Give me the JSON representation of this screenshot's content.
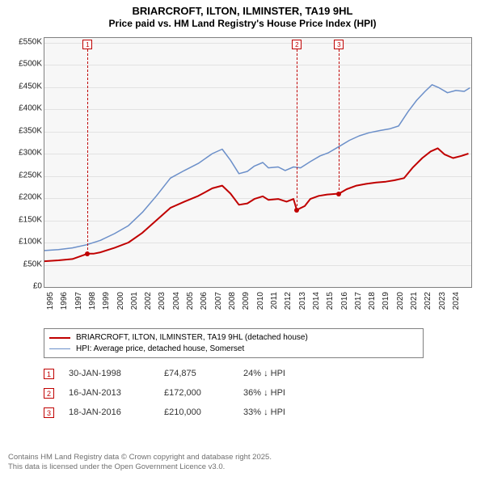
{
  "title": {
    "line1": "BRIARCROFT, ILTON, ILMINSTER, TA19 9HL",
    "line2": "Price paid vs. HM Land Registry's House Price Index (HPI)"
  },
  "chart": {
    "type": "line",
    "background_color": "#f7f7f7",
    "grid_color": "#e2e2e2",
    "border_color": "#808080",
    "x": {
      "min": 1995,
      "max": 2025.5,
      "ticks": [
        1995,
        1996,
        1997,
        1998,
        1999,
        2000,
        2001,
        2002,
        2003,
        2004,
        2005,
        2006,
        2007,
        2008,
        2009,
        2010,
        2011,
        2012,
        2013,
        2014,
        2015,
        2016,
        2017,
        2018,
        2019,
        2020,
        2021,
        2022,
        2023,
        2024
      ]
    },
    "y": {
      "min": 0,
      "max": 560000,
      "ticks": [
        0,
        50000,
        100000,
        150000,
        200000,
        250000,
        300000,
        350000,
        400000,
        450000,
        500000,
        550000
      ],
      "tick_labels": [
        "£0",
        "£50K",
        "£100K",
        "£150K",
        "£200K",
        "£250K",
        "£300K",
        "£350K",
        "£400K",
        "£450K",
        "£500K",
        "£550K"
      ]
    },
    "series": [
      {
        "name": "HPI: Average price, detached house, Somerset",
        "color": "#6b8fc9",
        "width": 1.5,
        "points": [
          [
            1995,
            82000
          ],
          [
            1996,
            84000
          ],
          [
            1997,
            88000
          ],
          [
            1998,
            95000
          ],
          [
            1999,
            105000
          ],
          [
            2000,
            120000
          ],
          [
            2001,
            138000
          ],
          [
            2002,
            168000
          ],
          [
            2003,
            205000
          ],
          [
            2004,
            245000
          ],
          [
            2005,
            262000
          ],
          [
            2006,
            278000
          ],
          [
            2007,
            300000
          ],
          [
            2007.7,
            310000
          ],
          [
            2008.3,
            285000
          ],
          [
            2008.9,
            255000
          ],
          [
            2009.5,
            260000
          ],
          [
            2010,
            272000
          ],
          [
            2010.6,
            280000
          ],
          [
            2011,
            268000
          ],
          [
            2011.7,
            270000
          ],
          [
            2012.2,
            262000
          ],
          [
            2012.8,
            270000
          ],
          [
            2013.3,
            268000
          ],
          [
            2014,
            282000
          ],
          [
            2014.7,
            295000
          ],
          [
            2015.3,
            302000
          ],
          [
            2016,
            315000
          ],
          [
            2016.8,
            330000
          ],
          [
            2017.5,
            340000
          ],
          [
            2018.2,
            347000
          ],
          [
            2019,
            352000
          ],
          [
            2019.7,
            356000
          ],
          [
            2020.3,
            362000
          ],
          [
            2021,
            395000
          ],
          [
            2021.6,
            420000
          ],
          [
            2022.2,
            440000
          ],
          [
            2022.7,
            455000
          ],
          [
            2023.2,
            448000
          ],
          [
            2023.8,
            437000
          ],
          [
            2024.4,
            442000
          ],
          [
            2025,
            440000
          ],
          [
            2025.4,
            448000
          ]
        ]
      },
      {
        "name": "BRIARCROFT, ILTON, ILMINSTER, TA19 9HL (detached house)",
        "color": "#c00000",
        "width": 2,
        "points": [
          [
            1995,
            58000
          ],
          [
            1996,
            60000
          ],
          [
            1997,
            63000
          ],
          [
            1998.08,
            74875
          ],
          [
            1998.5,
            75000
          ],
          [
            1999,
            78000
          ],
          [
            2000,
            88000
          ],
          [
            2001,
            100000
          ],
          [
            2002,
            122000
          ],
          [
            2003,
            150000
          ],
          [
            2004,
            178000
          ],
          [
            2005,
            192000
          ],
          [
            2006,
            205000
          ],
          [
            2007,
            222000
          ],
          [
            2007.7,
            228000
          ],
          [
            2008.3,
            210000
          ],
          [
            2008.9,
            185000
          ],
          [
            2009.5,
            188000
          ],
          [
            2010,
            198000
          ],
          [
            2010.6,
            204000
          ],
          [
            2011,
            196000
          ],
          [
            2011.7,
            198000
          ],
          [
            2012.3,
            192000
          ],
          [
            2012.8,
            198000
          ],
          [
            2013.04,
            172000
          ],
          [
            2013.2,
            176000
          ],
          [
            2013.6,
            182000
          ],
          [
            2014,
            198000
          ],
          [
            2014.6,
            205000
          ],
          [
            2015.2,
            208000
          ],
          [
            2016.05,
            210000
          ],
          [
            2016.6,
            220000
          ],
          [
            2017.3,
            228000
          ],
          [
            2018,
            232000
          ],
          [
            2018.7,
            235000
          ],
          [
            2019.4,
            237000
          ],
          [
            2020,
            240000
          ],
          [
            2020.7,
            245000
          ],
          [
            2021.3,
            268000
          ],
          [
            2022,
            290000
          ],
          [
            2022.6,
            305000
          ],
          [
            2023.1,
            312000
          ],
          [
            2023.6,
            298000
          ],
          [
            2024.2,
            290000
          ],
          [
            2024.8,
            295000
          ],
          [
            2025.3,
            300000
          ]
        ]
      }
    ],
    "markers": [
      {
        "n": "1",
        "x": 1998.08,
        "y": 74875
      },
      {
        "n": "2",
        "x": 2013.04,
        "y": 172000
      },
      {
        "n": "3",
        "x": 2016.05,
        "y": 210000
      }
    ],
    "tick_fontsize": 10
  },
  "legend": {
    "items": [
      {
        "label": "BRIARCROFT, ILTON, ILMINSTER, TA19 9HL (detached house)",
        "color": "#c00000",
        "width": 2
      },
      {
        "label": "HPI: Average price, detached house, Somerset",
        "color": "#6b8fc9",
        "width": 1.5
      }
    ]
  },
  "transactions": [
    {
      "n": "1",
      "date": "30-JAN-1998",
      "price": "£74,875",
      "diff": "24% ↓ HPI"
    },
    {
      "n": "2",
      "date": "16-JAN-2013",
      "price": "£172,000",
      "diff": "36% ↓ HPI"
    },
    {
      "n": "3",
      "date": "18-JAN-2016",
      "price": "£210,000",
      "diff": "33% ↓ HPI"
    }
  ],
  "footer": {
    "line1": "Contains HM Land Registry data © Crown copyright and database right 2025.",
    "line2": "This data is licensed under the Open Government Licence v3.0."
  }
}
